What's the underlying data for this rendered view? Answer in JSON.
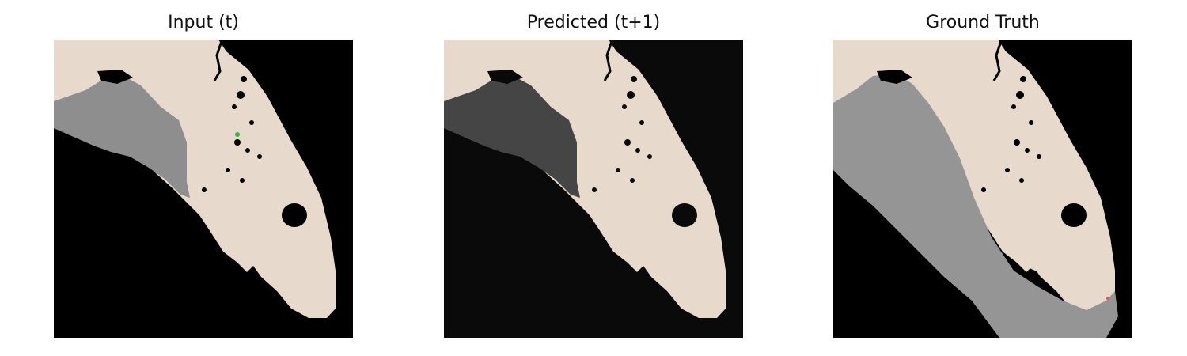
{
  "panels": [
    {
      "title": "Input (t)",
      "sea_color": "#000000",
      "land_color": "#e7dacd",
      "cover_color": "#8e8e8e",
      "lake_color": "#000000"
    },
    {
      "title": "Predicted (t+1)",
      "sea_color": "#0a0a0a",
      "land_color": "#e7dacd",
      "cover_color": "#454545",
      "lake_color": "#0a0a0a"
    },
    {
      "title": "Ground Truth",
      "sea_color": "#000000",
      "land_color": "#e7dacd",
      "cover_color": "#959595",
      "lake_color": "#000000"
    }
  ]
}
